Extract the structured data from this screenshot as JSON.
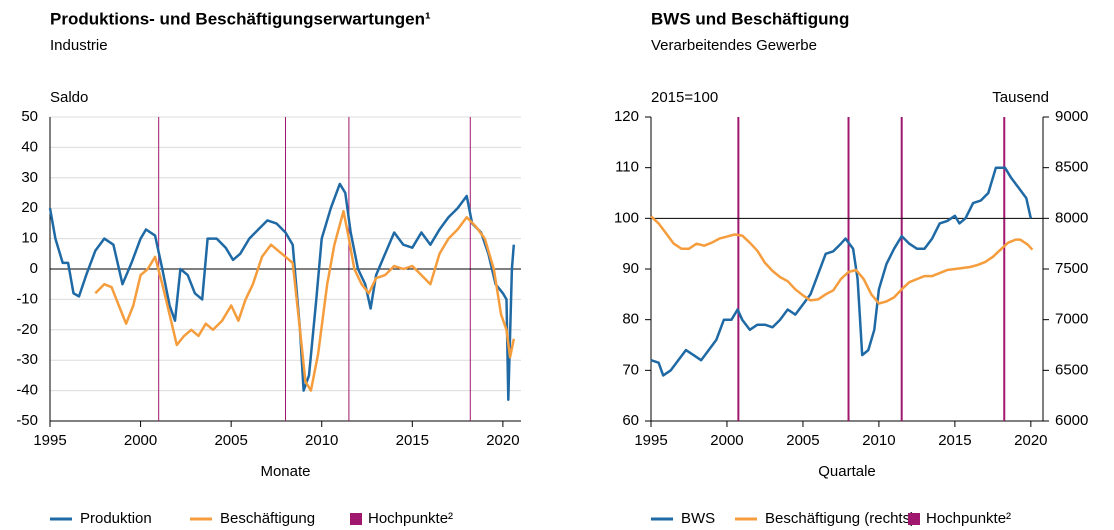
{
  "chart_data": [
    {
      "type": "line",
      "title": "Produktions- und Beschäftigungserwartungen¹",
      "subtitle": "Industrie",
      "y_label": "Saldo",
      "x_label": "Monate",
      "xlim": [
        1995,
        2021
      ],
      "xticks": [
        1995,
        2000,
        2005,
        2010,
        2015,
        2020
      ],
      "ylim": [
        -50,
        50
      ],
      "yticks": [
        -50,
        -40,
        -30,
        -20,
        -10,
        0,
        10,
        20,
        30,
        40,
        50
      ],
      "grid": true,
      "reference_line": 0,
      "legend": "bottom",
      "series": [
        {
          "name": "Produktion",
          "color": "#1f6aa5",
          "x": [
            1995,
            1995.3,
            1995.7,
            1996,
            1996.3,
            1996.6,
            1997,
            1997.5,
            1998,
            1998.5,
            1999,
            1999.5,
            2000,
            2000.3,
            2000.8,
            2001.2,
            2001.6,
            2001.9,
            2002.2,
            2002.6,
            2003,
            2003.4,
            2003.7,
            2004.2,
            2004.7,
            2005.1,
            2005.5,
            2006,
            2006.5,
            2007,
            2007.5,
            2008,
            2008.4,
            2008.8,
            2009.0,
            2009.3,
            2009.7,
            2010,
            2010.5,
            2011,
            2011.3,
            2011.6,
            2012,
            2012.4,
            2012.7,
            2013,
            2013.5,
            2014,
            2014.5,
            2015,
            2015.5,
            2016,
            2016.5,
            2017,
            2017.5,
            2018,
            2018.3,
            2018.8,
            2019.2,
            2019.6,
            2020,
            2020.2,
            2020.3,
            2020.5,
            2020.6
          ],
          "values": [
            20,
            10,
            2,
            2,
            -8,
            -9,
            -2,
            6,
            10,
            8,
            -5,
            2,
            10,
            13,
            11,
            0,
            -12,
            -17,
            0,
            -2,
            -8,
            -10,
            10,
            10,
            7,
            3,
            5,
            10,
            13,
            16,
            15,
            12,
            8,
            -20,
            -40,
            -35,
            -10,
            10,
            20,
            28,
            25,
            12,
            0,
            -5,
            -13,
            -2,
            5,
            12,
            8,
            7,
            12,
            8,
            13,
            17,
            20,
            24,
            15,
            12,
            5,
            -5,
            -8,
            -10,
            -43,
            0,
            8
          ]
        },
        {
          "name": "Beschäftigung",
          "color": "#f59d3d",
          "x": [
            1997.5,
            1998,
            1998.4,
            1998.8,
            1999.2,
            1999.6,
            2000,
            2000.4,
            2000.8,
            2001.2,
            2001.6,
            2002,
            2002.4,
            2002.8,
            2003.2,
            2003.6,
            2004,
            2004.5,
            2005,
            2005.4,
            2005.8,
            2006.2,
            2006.7,
            2007.2,
            2007.6,
            2008,
            2008.4,
            2008.8,
            2009.1,
            2009.4,
            2009.8,
            2010.3,
            2010.7,
            2011.2,
            2011.5,
            2011.8,
            2012.2,
            2012.6,
            2013,
            2013.5,
            2014,
            2014.5,
            2015,
            2015.5,
            2016,
            2016.5,
            2017,
            2017.5,
            2018,
            2018.5,
            2019,
            2019.5,
            2019.9,
            2020.2,
            2020.4,
            2020.6
          ],
          "values": [
            -8,
            -5,
            -6,
            -12,
            -18,
            -12,
            -2,
            0,
            4,
            -5,
            -15,
            -25,
            -22,
            -20,
            -22,
            -18,
            -20,
            -17,
            -12,
            -17,
            -10,
            -5,
            4,
            8,
            6,
            4,
            2,
            -20,
            -37,
            -40,
            -28,
            -5,
            8,
            19,
            10,
            0,
            -5,
            -8,
            -3,
            -2,
            1,
            0,
            1,
            -2,
            -5,
            5,
            10,
            13,
            17,
            14,
            10,
            0,
            -15,
            -20,
            -29,
            -23
          ]
        }
      ],
      "peaks": {
        "name": "Hochpunkte²",
        "color": "#a0186e",
        "x": [
          2001.0,
          2008.0,
          2011.5,
          2018.2
        ]
      }
    },
    {
      "type": "line",
      "title": "BWS und Beschäftigung",
      "subtitle": "Verarbeitendes Gewerbe",
      "y_label": "2015=100",
      "y2_label": "Tausend",
      "x_label": "Quartale",
      "xlim": [
        1995,
        2020.8
      ],
      "xticks": [
        1995,
        2000,
        2005,
        2010,
        2015,
        2020
      ],
      "ylim": [
        60,
        120
      ],
      "yticks": [
        60,
        70,
        80,
        90,
        100,
        110,
        120
      ],
      "y2lim": [
        6000,
        9000
      ],
      "y2ticks": [
        6000,
        6500,
        7000,
        7500,
        8000,
        8500,
        9000
      ],
      "grid": false,
      "reference_line": 100,
      "legend": "bottom",
      "series": [
        {
          "name": "BWS",
          "color": "#1f6aa5",
          "x": [
            1995,
            1995.5,
            1995.8,
            1996.3,
            1996.8,
            1997.3,
            1997.8,
            1998.3,
            1998.8,
            1999.3,
            1999.8,
            2000.3,
            2000.7,
            2001,
            2001.5,
            2002,
            2002.5,
            2003,
            2003.5,
            2004,
            2004.5,
            2005,
            2005.5,
            2006,
            2006.5,
            2007,
            2007.5,
            2007.8,
            2008.3,
            2008.6,
            2008.9,
            2009.3,
            2009.7,
            2010,
            2010.5,
            2011,
            2011.5,
            2012,
            2012.5,
            2013,
            2013.5,
            2014,
            2014.5,
            2015,
            2015.3,
            2015.7,
            2016.2,
            2016.7,
            2017.2,
            2017.7,
            2018,
            2018.3,
            2018.7,
            2019.2,
            2019.7,
            2020.0
          ],
          "values": [
            72,
            71.5,
            69,
            70,
            72,
            74,
            73,
            72,
            74,
            76,
            80,
            80,
            82,
            80,
            78,
            79,
            79,
            78.5,
            80,
            82,
            81,
            83,
            85,
            89,
            93,
            93.5,
            95,
            96,
            94,
            88,
            73,
            74,
            78,
            86,
            91,
            94,
            96.5,
            95,
            94,
            94,
            96,
            99,
            99.5,
            100.5,
            99,
            100,
            103,
            103.5,
            105,
            110,
            110,
            110,
            108,
            106,
            104,
            100
          ]
        },
        {
          "name": "Beschäftigung (rechts)",
          "color": "#f59d3d",
          "axis": "y2",
          "x": [
            1995,
            1995.5,
            1996,
            1996.5,
            1997,
            1997.5,
            1998,
            1998.5,
            1999,
            1999.5,
            2000,
            2000.5,
            2001,
            2001.5,
            2002,
            2002.5,
            2003,
            2003.5,
            2004,
            2004.5,
            2005,
            2005.5,
            2006,
            2006.5,
            2007,
            2007.5,
            2008,
            2008.5,
            2009,
            2009.5,
            2010,
            2010.5,
            2011,
            2011.5,
            2012,
            2012.5,
            2013,
            2013.5,
            2014,
            2014.5,
            2015,
            2015.5,
            2016,
            2016.5,
            2017,
            2017.5,
            2018,
            2018.5,
            2019,
            2019.3,
            2019.8,
            2020.1
          ],
          "values": [
            8020,
            7950,
            7850,
            7750,
            7700,
            7700,
            7750,
            7730,
            7760,
            7800,
            7820,
            7840,
            7830,
            7760,
            7680,
            7560,
            7480,
            7420,
            7380,
            7300,
            7240,
            7190,
            7200,
            7250,
            7290,
            7400,
            7470,
            7490,
            7400,
            7250,
            7160,
            7180,
            7220,
            7300,
            7370,
            7400,
            7430,
            7430,
            7460,
            7490,
            7500,
            7510,
            7520,
            7540,
            7570,
            7620,
            7690,
            7760,
            7790,
            7790,
            7740,
            7690
          ]
        }
      ],
      "peaks": {
        "name": "Hochpunkte²",
        "color": "#a0186e",
        "x": [
          2000.75,
          2008.0,
          2011.5,
          2018.25
        ]
      }
    }
  ]
}
